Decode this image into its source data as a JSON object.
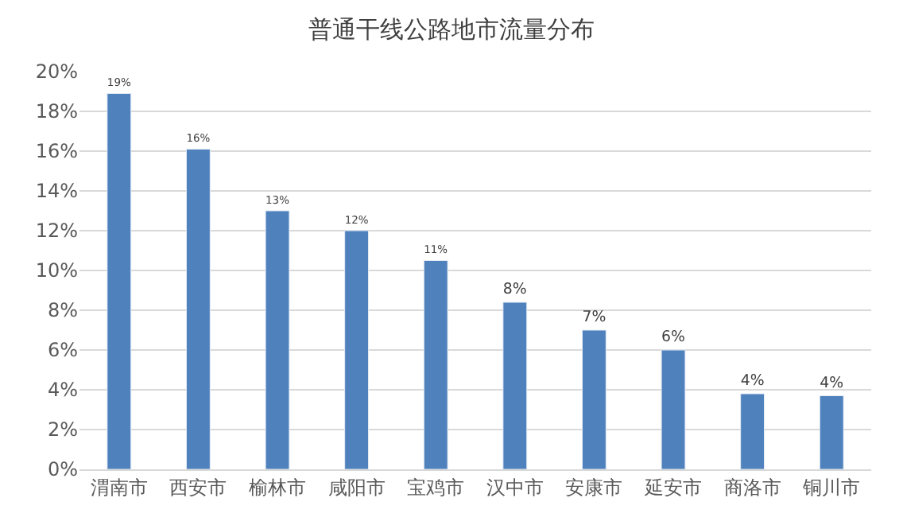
{
  "chart_data": {
    "type": "bar",
    "title": "普通干线公路地市流量分布",
    "categories": [
      "渭南市",
      "西安市",
      "榆林市",
      "咸阳市",
      "宝鸡市",
      "汉中市",
      "安康市",
      "延安市",
      "商洛市",
      "铜川市"
    ],
    "values": [
      18.9,
      16.1,
      13.0,
      12.0,
      10.5,
      8.4,
      7.0,
      6.0,
      3.8,
      3.7
    ],
    "value_labels": [
      "19%",
      "16%",
      "13%",
      "12%",
      "11%",
      "8%",
      "7%",
      "6%",
      "4%",
      "4%"
    ],
    "color": "#4f81bd",
    "ylim": [
      0,
      20
    ],
    "yticks": [
      {
        "value": 0,
        "label": "0%"
      },
      {
        "value": 2,
        "label": "2%"
      },
      {
        "value": 4,
        "label": "4%"
      },
      {
        "value": 6,
        "label": "6%"
      },
      {
        "value": 8,
        "label": "8%"
      },
      {
        "value": 10,
        "label": "10%"
      },
      {
        "value": 12,
        "label": "12%"
      },
      {
        "value": 14,
        "label": "14%"
      },
      {
        "value": 16,
        "label": "16%"
      },
      {
        "value": 18,
        "label": "18%"
      },
      {
        "value": 20,
        "label": "20%"
      }
    ],
    "grid": "y"
  }
}
